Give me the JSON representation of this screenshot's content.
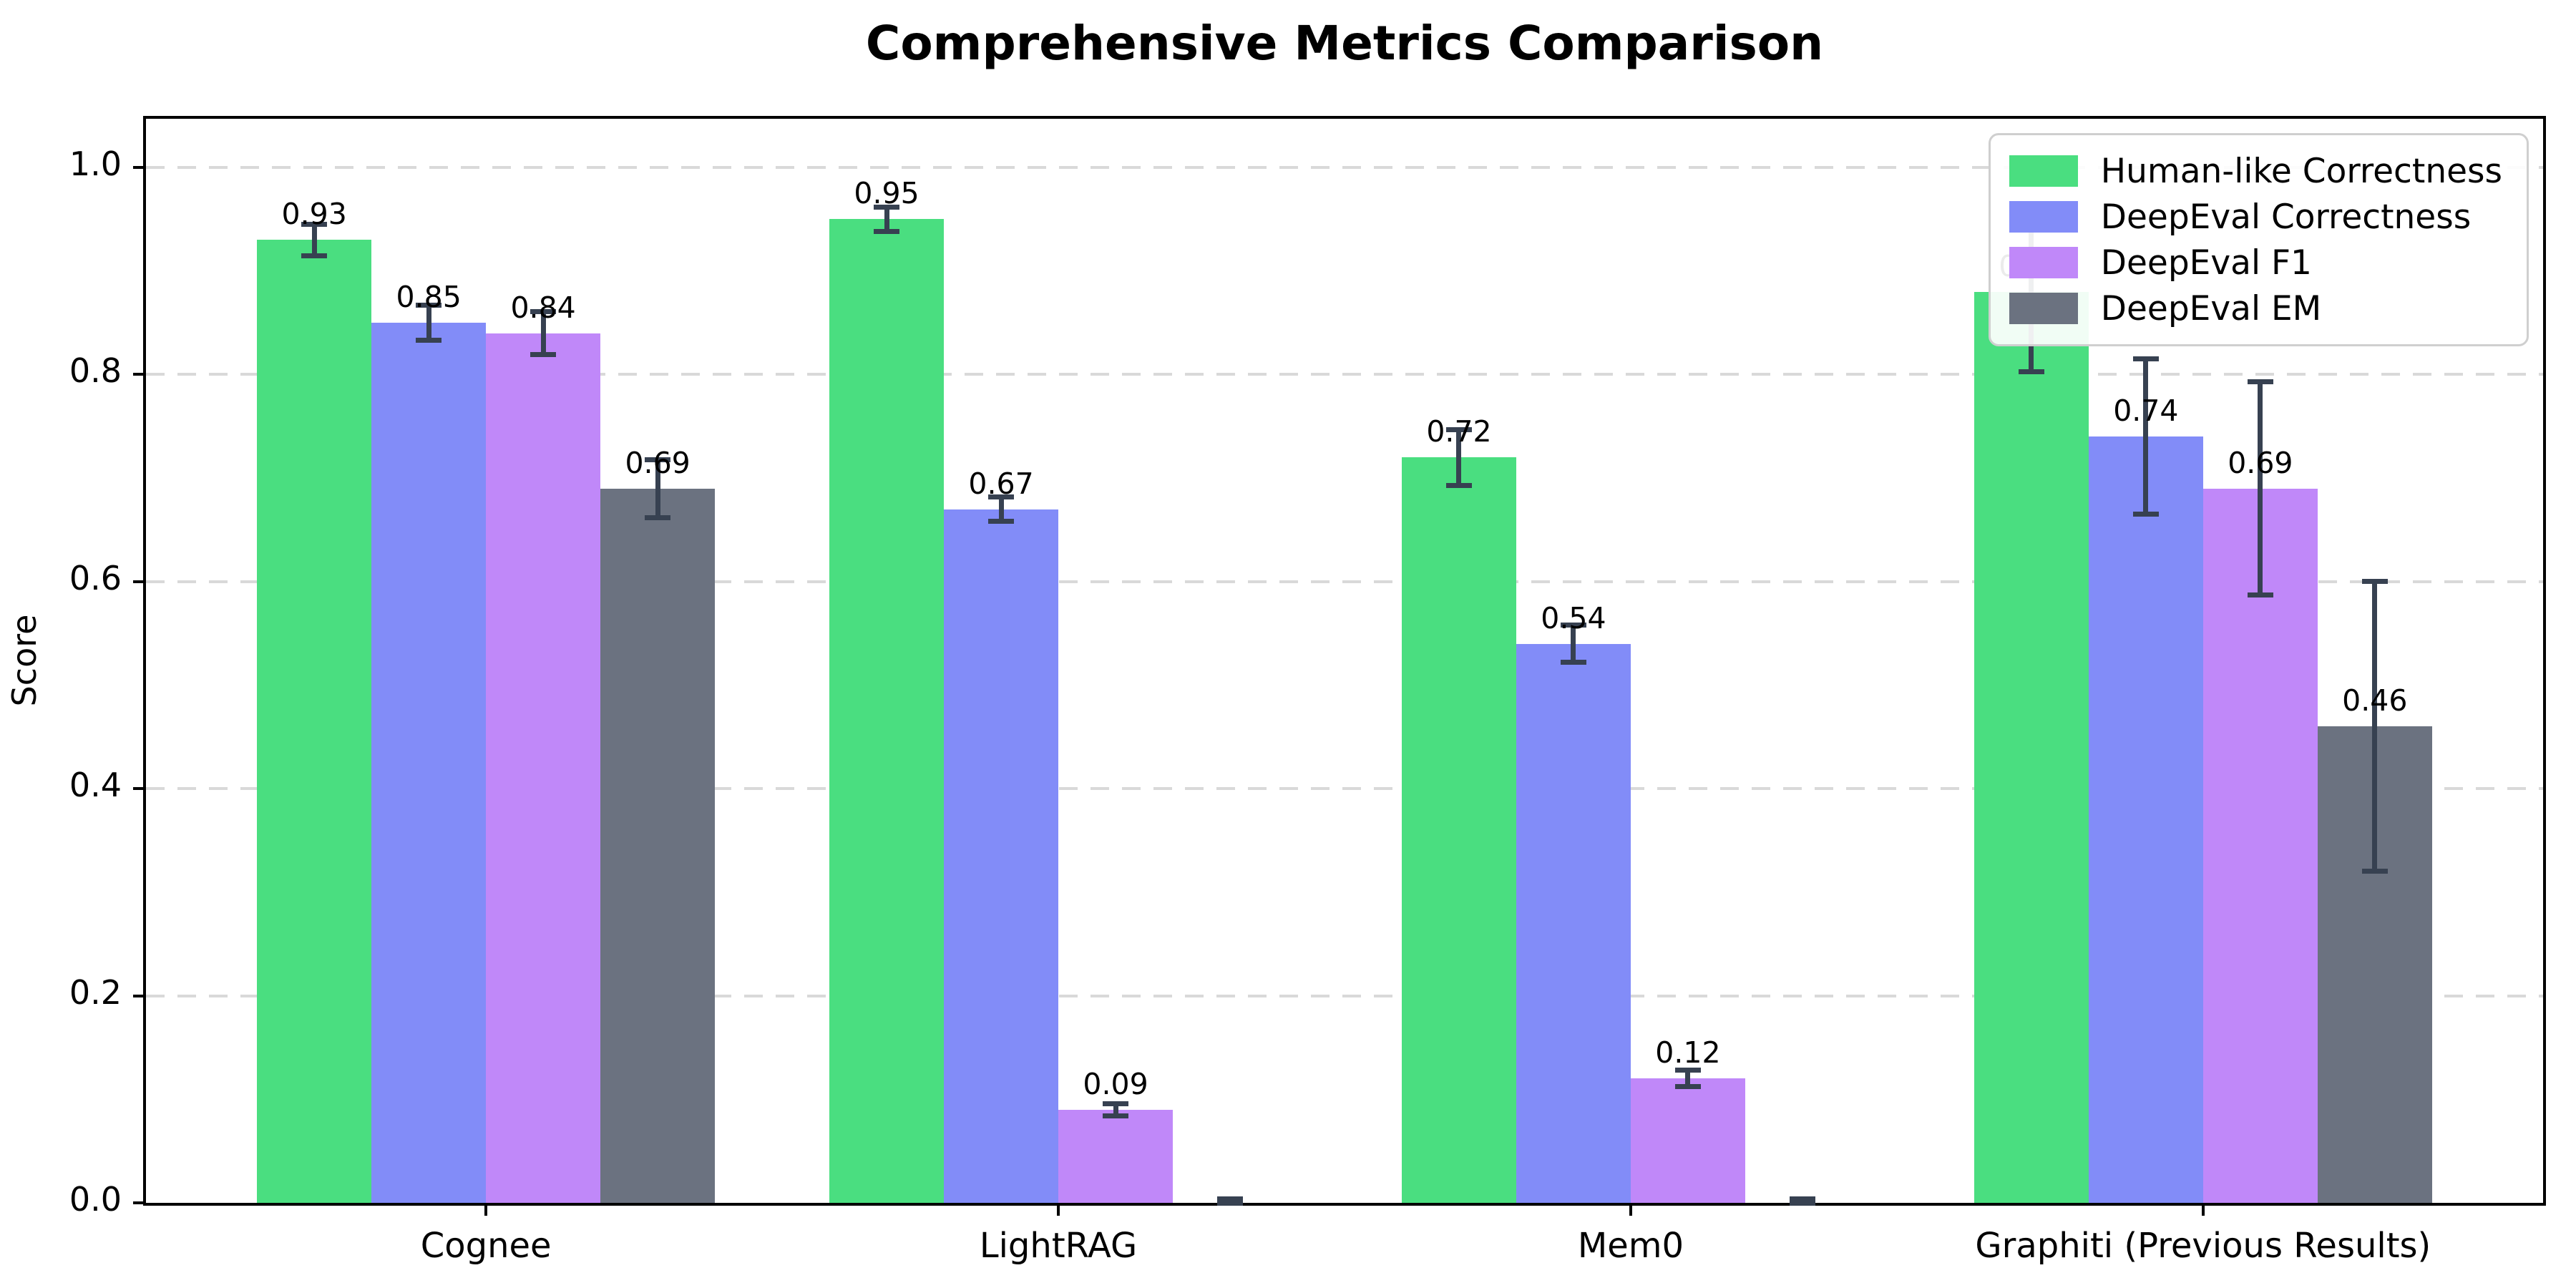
{
  "title": "Comprehensive Metrics Comparison",
  "y_axis_title": "Score",
  "chart_data": {
    "type": "bar",
    "title": "Comprehensive Metrics Comparison",
    "xlabel": "",
    "ylabel": "Score",
    "categories": [
      "Cognee",
      "LightRAG",
      "Mem0",
      "Graphiti (Previous Results)"
    ],
    "series": [
      {
        "name": "Human-like Correctness",
        "color": "#4ade80",
        "values": [
          0.93,
          0.95,
          0.72,
          0.88
        ],
        "errors": [
          0.015,
          0.012,
          0.027,
          0.077
        ],
        "bar_labels": [
          "0.93",
          "0.95",
          "0.72",
          "0.88"
        ]
      },
      {
        "name": "DeepEval Correctness",
        "color": "#828cf8",
        "values": [
          0.85,
          0.67,
          0.54,
          0.74
        ],
        "errors": [
          0.017,
          0.012,
          0.018,
          0.075
        ],
        "bar_labels": [
          "0.85",
          "0.67",
          "0.54",
          "0.74"
        ]
      },
      {
        "name": "DeepEval F1",
        "color": "#c088f9",
        "values": [
          0.84,
          0.09,
          0.12,
          0.69
        ],
        "errors": [
          0.021,
          0.006,
          0.008,
          0.103
        ],
        "bar_labels": [
          "0.84",
          "0.09",
          "0.12",
          "0.69"
        ]
      },
      {
        "name": "DeepEval EM",
        "color": "#6b7280",
        "values": [
          0.69,
          0.0,
          0.0,
          0.46
        ],
        "errors": [
          0.028,
          0.004,
          0.004,
          0.14
        ],
        "bar_labels": [
          "0.69",
          null,
          null,
          "0.46"
        ]
      }
    ],
    "ylim": [
      0,
      1.047
    ],
    "yticks": [
      0.0,
      0.2,
      0.4,
      0.6,
      0.8,
      1.0
    ],
    "ytick_labels": [
      "0.0",
      "0.2",
      "0.4",
      "0.6",
      "0.8",
      "1.0"
    ],
    "grid": "horizontal dashed",
    "legend_position": "upper right",
    "bar_width_units": 0.2,
    "error_bars": true
  },
  "colors": {
    "error_bar": "#374151",
    "gridline": "#d9d9d9",
    "axis": "#000000",
    "legend_border": "#cfcfcf",
    "background": "#ffffff"
  }
}
